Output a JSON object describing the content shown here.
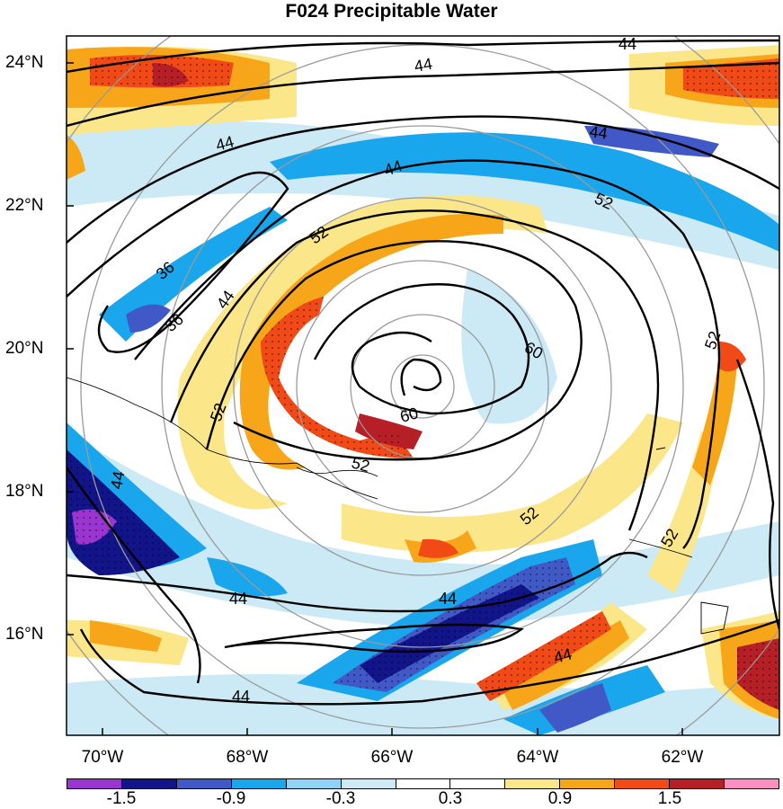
{
  "title": "F024 Precipitable Water",
  "lat_labels": [
    "24°N",
    "22°N",
    "20°N",
    "18°N",
    "16°N"
  ],
  "lon_labels": [
    "70°W",
    "68°W",
    "66°W",
    "64°W",
    "62°W"
  ],
  "colorbar": {
    "labels": [
      "-1.5",
      "-0.9",
      "-0.3",
      "0.3",
      "0.9",
      "1.5"
    ],
    "colors": [
      "#9a35d2",
      "#12148a",
      "#4059c6",
      "#1aa6ec",
      "#8fd4f6",
      "#cce9f6",
      "#ffffff",
      "#ffffff",
      "#fbe68a",
      "#f7a61a",
      "#f14a16",
      "#b61f26",
      "#ff8fc0"
    ]
  },
  "contours": {
    "color": "#000000",
    "labels": [
      "44",
      "44",
      "44",
      "44",
      "44",
      "44",
      "44",
      "44",
      "44",
      "44",
      "44",
      "36",
      "36",
      "52",
      "52",
      "52",
      "52",
      "52",
      "52",
      "52",
      "60",
      "60"
    ]
  }
}
